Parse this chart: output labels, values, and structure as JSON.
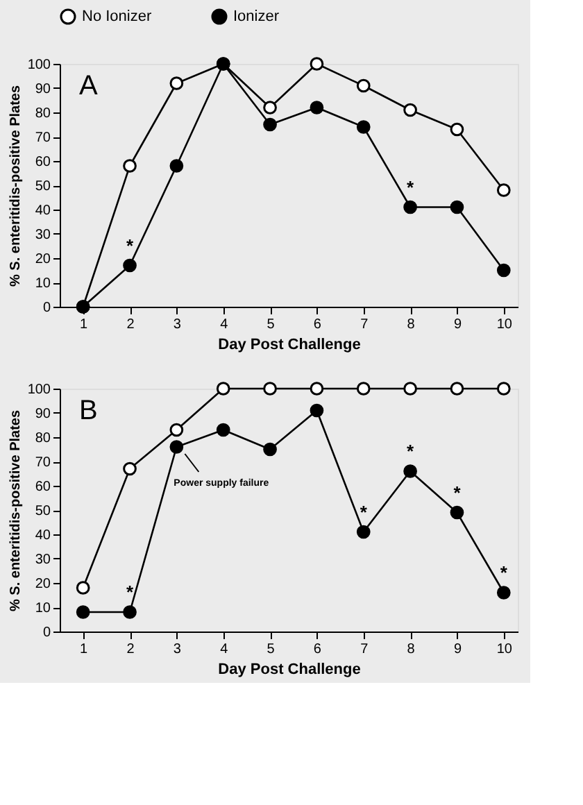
{
  "chart_data": [
    {
      "type": "line",
      "xlabel": "Day Post Challenge",
      "ylabel": "% S. enteritidis-positive Plates",
      "x": [
        1,
        2,
        3,
        4,
        5,
        6,
        7,
        8,
        9,
        10
      ],
      "xlim": [
        0.5,
        10.3
      ],
      "xticks": [
        1,
        2,
        3,
        4,
        5,
        6,
        7,
        8,
        9,
        10
      ],
      "ylim": [
        0,
        100
      ],
      "yticks": [
        0,
        10,
        20,
        30,
        40,
        50,
        60,
        70,
        80,
        90,
        100
      ],
      "marker": "circle",
      "line_style": "solid",
      "legend": "top",
      "grid": false,
      "series": [
        {
          "name": "No Ionizer",
          "color": "#000000",
          "values": [
            0,
            58,
            92,
            100,
            82,
            100,
            91,
            81,
            73,
            48
          ]
        },
        {
          "name": "Ionizer",
          "color": "#000000",
          "values": [
            0,
            17,
            58,
            100,
            75,
            82,
            74,
            41,
            41,
            15
          ]
        }
      ],
      "annotations": [
        "A",
        {
          "text": "*",
          "x": 2,
          "y": 17
        },
        {
          "text": "*",
          "x": 8,
          "y": 41
        }
      ]
    },
    {
      "type": "line",
      "xlabel": "Day Post Challenge",
      "ylabel": "% S. enteritidis-positive Plates",
      "x": [
        1,
        2,
        3,
        4,
        5,
        6,
        7,
        8,
        9,
        10
      ],
      "xlim": [
        0.5,
        10.3
      ],
      "xticks": [
        1,
        2,
        3,
        4,
        5,
        6,
        7,
        8,
        9,
        10
      ],
      "ylim": [
        0,
        100
      ],
      "yticks": [
        0,
        10,
        20,
        30,
        40,
        50,
        60,
        70,
        80,
        90,
        100
      ],
      "marker": "circle",
      "line_style": "solid",
      "legend": "top",
      "grid": false,
      "series": [
        {
          "name": "No Ionizer",
          "color": "#000000",
          "values": [
            18,
            67,
            83,
            100,
            100,
            100,
            100,
            100,
            100,
            100
          ]
        },
        {
          "name": "Ionizer",
          "color": "#000000",
          "values": [
            8,
            8,
            76,
            83,
            75,
            91,
            41,
            66,
            49,
            16
          ]
        }
      ],
      "annotations": [
        "B",
        {
          "text": "*",
          "x": 2,
          "y": 8
        },
        {
          "text": "*",
          "x": 7,
          "y": 41
        },
        {
          "text": "*",
          "x": 8,
          "y": 66
        },
        {
          "text": "*",
          "x": 9,
          "y": 49
        },
        {
          "text": "*",
          "x": 10,
          "y": 16
        },
        {
          "text": "Power supply failure",
          "x": 3,
          "y": 76
        }
      ]
    }
  ]
}
